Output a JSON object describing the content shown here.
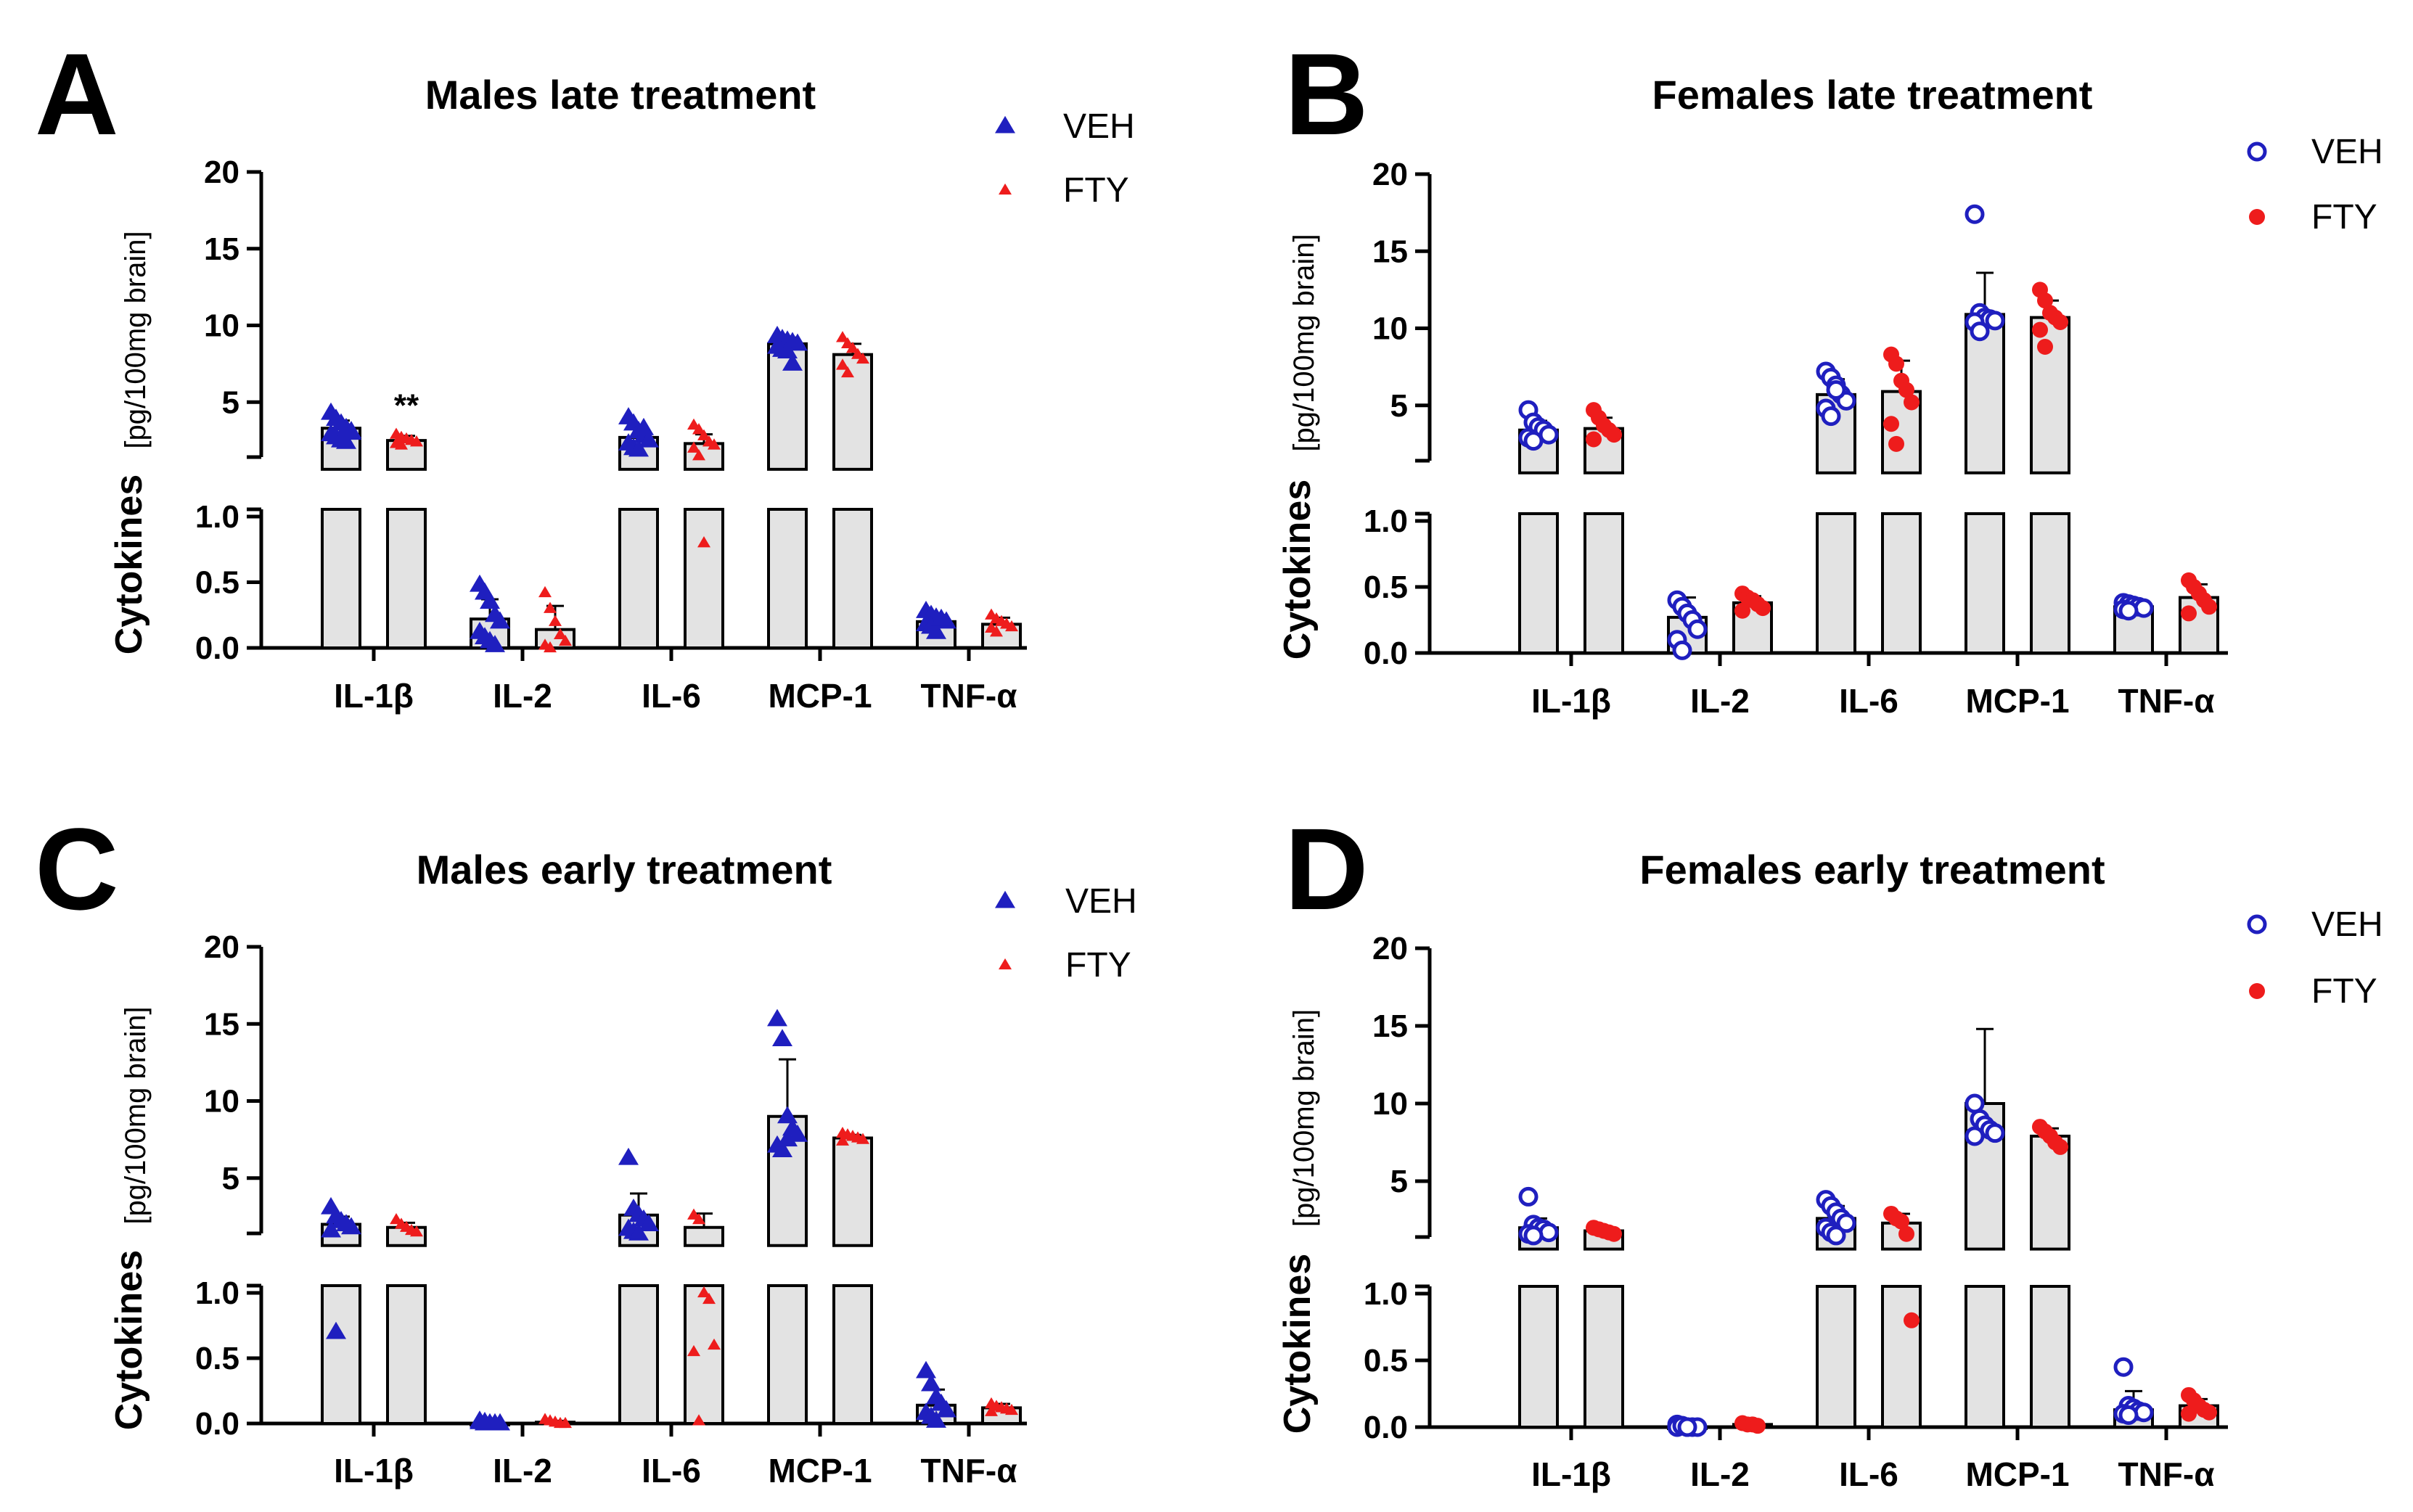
{
  "colors": {
    "veh": "#1f1fbf",
    "fty": "#ee1c1c",
    "bar_fill": "#e3e3e3",
    "axis": "#000000"
  },
  "chart_data": [
    {
      "panel": "A",
      "title": "Males late treatment",
      "type": "bar",
      "ylabel": "Cytokines",
      "ylabel_unit": "[pg/100mg brain]",
      "y_lower": {
        "range": [
          0,
          1.0
        ],
        "ticks": [
          "0.0",
          "0.5",
          "1.0"
        ]
      },
      "y_upper": {
        "range": [
          1.0,
          20
        ],
        "ticks": [
          "5",
          "10",
          "15",
          "20"
        ]
      },
      "categories": [
        "IL-1β",
        "IL-2",
        "IL-6",
        "MCP-1",
        "TNF-α"
      ],
      "legend": [
        {
          "name": "VEH",
          "marker": "triangle"
        },
        {
          "name": "FTY",
          "marker": "small-triangle"
        }
      ],
      "series": [
        {
          "name": "VEH",
          "marker": "triangle",
          "filled": true,
          "color": "#1f1fbf",
          "means": [
            3.3,
            0.22,
            2.7,
            8.8,
            0.2
          ],
          "sd": [
            0.5,
            0.15,
            0.7,
            0.4,
            0.05
          ],
          "points": [
            [
              4.3,
              3.9,
              3.6,
              3.3,
              3.1,
              2.9,
              2.7,
              2.5,
              2.4,
              3.0
            ],
            [
              0.48,
              0.42,
              0.35,
              0.25,
              0.2,
              0.12,
              0.08,
              0.05,
              0.02
            ],
            [
              4.0,
              3.6,
              3.1,
              2.8,
              2.5,
              2.3,
              2.0,
              1.9,
              3.3
            ],
            [
              9.3,
              9.1,
              9.0,
              8.9,
              8.8,
              8.6,
              8.4,
              8.3,
              7.5
            ],
            [
              0.28,
              0.25,
              0.23,
              0.21,
              0.2,
              0.18,
              0.16,
              0.12,
              0.22
            ]
          ]
        },
        {
          "name": "FTY",
          "marker": "small-triangle",
          "filled": true,
          "color": "#ee1c1c",
          "means": [
            2.5,
            0.14,
            2.3,
            8.1,
            0.18
          ],
          "sd": [
            0.3,
            0.18,
            0.6,
            0.7,
            0.05
          ],
          "points": [
            [
              2.9,
              2.7,
              2.6,
              2.5,
              2.4,
              2.3,
              2.2
            ],
            [
              0.42,
              0.3,
              0.2,
              0.1,
              0.05,
              0.02,
              0.0
            ],
            [
              3.5,
              3.2,
              2.8,
              2.4,
              2.2,
              2.0,
              1.5,
              0.8
            ],
            [
              9.2,
              8.8,
              8.5,
              8.1,
              7.8,
              7.4,
              6.9
            ],
            [
              0.25,
              0.22,
              0.2,
              0.18,
              0.16,
              0.15,
              0.12
            ]
          ]
        }
      ],
      "annotations": [
        {
          "text": "**",
          "category": "IL-1β",
          "series": "FTY"
        }
      ]
    },
    {
      "panel": "B",
      "title": "Females late treatment",
      "type": "bar",
      "ylabel": "Cytokines",
      "ylabel_unit": "[pg/100mg brain]",
      "y_lower": {
        "range": [
          0,
          1.0
        ],
        "ticks": [
          "0.0",
          "0.5",
          "1.0"
        ]
      },
      "y_upper": {
        "range": [
          1.0,
          20
        ],
        "ticks": [
          "5",
          "10",
          "15",
          "20"
        ]
      },
      "categories": [
        "IL-1β",
        "IL-2",
        "IL-6",
        "MCP-1",
        "TNF-α"
      ],
      "legend": [
        {
          "name": "VEH",
          "marker": "open-circle"
        },
        {
          "name": "FTY",
          "marker": "filled-circle"
        }
      ],
      "series": [
        {
          "name": "VEH",
          "marker": "circle",
          "filled": false,
          "color": "#1f1fbf",
          "means": [
            3.4,
            0.27,
            5.7,
            10.9,
            0.35
          ],
          "sd": [
            0.6,
            0.15,
            1.0,
            2.7,
            0.03
          ],
          "points": [
            [
              4.7,
              3.9,
              3.6,
              3.4,
              3.1,
              2.9,
              2.7
            ],
            [
              0.4,
              0.35,
              0.3,
              0.25,
              0.18,
              0.1,
              0.02
            ],
            [
              7.2,
              6.8,
              6.3,
              5.7,
              5.3,
              4.8,
              4.3,
              6.0
            ],
            [
              17.4,
              11.0,
              10.7,
              10.6,
              10.5,
              10.4,
              9.8
            ],
            [
              0.38,
              0.37,
              0.36,
              0.35,
              0.34,
              0.33,
              0.32
            ]
          ]
        },
        {
          "name": "FTY",
          "marker": "circle",
          "filled": true,
          "color": "#ee1c1c",
          "means": [
            3.5,
            0.38,
            5.9,
            10.7,
            0.42
          ],
          "sd": [
            0.7,
            0.05,
            2.0,
            1.1,
            0.1
          ],
          "points": [
            [
              4.7,
              4.2,
              3.7,
              3.4,
              3.1,
              2.8
            ],
            [
              0.45,
              0.42,
              0.4,
              0.37,
              0.34,
              0.32
            ],
            [
              8.3,
              7.7,
              6.6,
              6.0,
              5.2,
              3.8,
              2.5
            ],
            [
              12.5,
              11.8,
              11.0,
              10.7,
              10.4,
              9.9,
              8.8
            ],
            [
              0.55,
              0.5,
              0.45,
              0.4,
              0.35,
              0.3
            ]
          ]
        }
      ],
      "annotations": []
    },
    {
      "panel": "C",
      "title": "Males early treatment",
      "type": "bar",
      "ylabel": "Cytokines",
      "ylabel_unit": "[pg/100mg brain]",
      "y_lower": {
        "range": [
          0,
          1.0
        ],
        "ticks": [
          "0.0",
          "0.5",
          "1.0"
        ]
      },
      "y_upper": {
        "range": [
          1.0,
          20
        ],
        "ticks": [
          "5",
          "10",
          "15",
          "20"
        ]
      },
      "categories": [
        "IL-1β",
        "IL-2",
        "IL-6",
        "MCP-1",
        "TNF-α"
      ],
      "legend": [
        {
          "name": "VEH",
          "marker": "triangle"
        },
        {
          "name": "FTY",
          "marker": "small-triangle"
        }
      ],
      "series": [
        {
          "name": "VEH",
          "marker": "triangle",
          "filled": true,
          "color": "#1f1fbf",
          "means": [
            2.0,
            0.0,
            2.6,
            9.0,
            0.14
          ],
          "sd": [
            0.5,
            0.0,
            1.4,
            3.7,
            0.12
          ],
          "points": [
            [
              3.1,
              2.5,
              2.2,
              2.0,
              1.8,
              1.6,
              0.7
            ],
            [
              0.02,
              0.01,
              0.0,
              0.0,
              0.0,
              0.01,
              0.0
            ],
            [
              6.3,
              3.0,
              2.6,
              2.3,
              2.0,
              1.7,
              1.5,
              1.4
            ],
            [
              15.3,
              14.0,
              9.0,
              8.2,
              7.8,
              7.1,
              6.8,
              7.5
            ],
            [
              0.4,
              0.3,
              0.2,
              0.15,
              0.1,
              0.08,
              0.05,
              0.02
            ]
          ]
        },
        {
          "name": "FTY",
          "marker": "small-triangle",
          "filled": true,
          "color": "#ee1c1c",
          "means": [
            1.8,
            0.01,
            1.8,
            7.6,
            0.12
          ],
          "sd": [
            0.3,
            0.01,
            0.9,
            0.2,
            0.03
          ],
          "points": [
            [
              2.3,
              2.0,
              1.8,
              1.6,
              1.5
            ],
            [
              0.03,
              0.02,
              0.01,
              0.0,
              0.0
            ],
            [
              2.6,
              2.3,
              1.0,
              0.95,
              0.6,
              0.55,
              0.02
            ],
            [
              7.9,
              7.8,
              7.7,
              7.6,
              7.5,
              7.4
            ],
            [
              0.15,
              0.13,
              0.12,
              0.11,
              0.1,
              0.09
            ]
          ]
        }
      ],
      "annotations": []
    },
    {
      "panel": "D",
      "title": "Females early treatment",
      "type": "bar",
      "ylabel": "Cytokines",
      "ylabel_unit": "[pg/100mg brain]",
      "y_lower": {
        "range": [
          0,
          1.0
        ],
        "ticks": [
          "0.0",
          "0.5",
          "1.0"
        ]
      },
      "y_upper": {
        "range": [
          1.0,
          20
        ],
        "ticks": [
          "5",
          "10",
          "15",
          "20"
        ]
      },
      "categories": [
        "IL-1β",
        "IL-2",
        "IL-6",
        "MCP-1",
        "TNF-α"
      ],
      "legend": [
        {
          "name": "VEH",
          "marker": "open-circle"
        },
        {
          "name": "FTY",
          "marker": "filled-circle"
        }
      ],
      "series": [
        {
          "name": "VEH",
          "marker": "circle",
          "filled": false,
          "color": "#1f1fbf",
          "means": [
            2.0,
            0.0,
            2.6,
            10.0,
            0.13
          ],
          "sd": [
            0.6,
            0.0,
            0.8,
            4.8,
            0.14
          ],
          "points": [
            [
              4.0,
              2.2,
              2.0,
              1.9,
              1.7,
              1.6,
              1.5
            ],
            [
              0.02,
              0.01,
              0.0,
              0.0,
              0.0,
              0.0,
              0.01,
              0.0
            ],
            [
              3.8,
              3.4,
              3.0,
              2.6,
              2.3,
              2.0,
              1.7,
              1.5
            ],
            [
              10.0,
              9.0,
              8.6,
              8.3,
              8.1,
              7.9
            ],
            [
              0.45,
              0.16,
              0.14,
              0.12,
              0.11,
              0.1,
              0.09
            ]
          ]
        },
        {
          "name": "FTY",
          "marker": "circle",
          "filled": true,
          "color": "#ee1c1c",
          "means": [
            1.8,
            0.02,
            2.3,
            7.9,
            0.16
          ],
          "sd": [
            0.2,
            0.01,
            0.6,
            0.5,
            0.05
          ],
          "points": [
            [
              2.0,
              1.9,
              1.8,
              1.7,
              1.6
            ],
            [
              0.03,
              0.02,
              0.02,
              0.01
            ],
            [
              2.9,
              2.6,
              2.4,
              1.6,
              0.8
            ],
            [
              8.5,
              8.2,
              7.9,
              7.5,
              7.2
            ],
            [
              0.24,
              0.2,
              0.16,
              0.13,
              0.11,
              0.1
            ]
          ]
        }
      ],
      "annotations": []
    }
  ]
}
